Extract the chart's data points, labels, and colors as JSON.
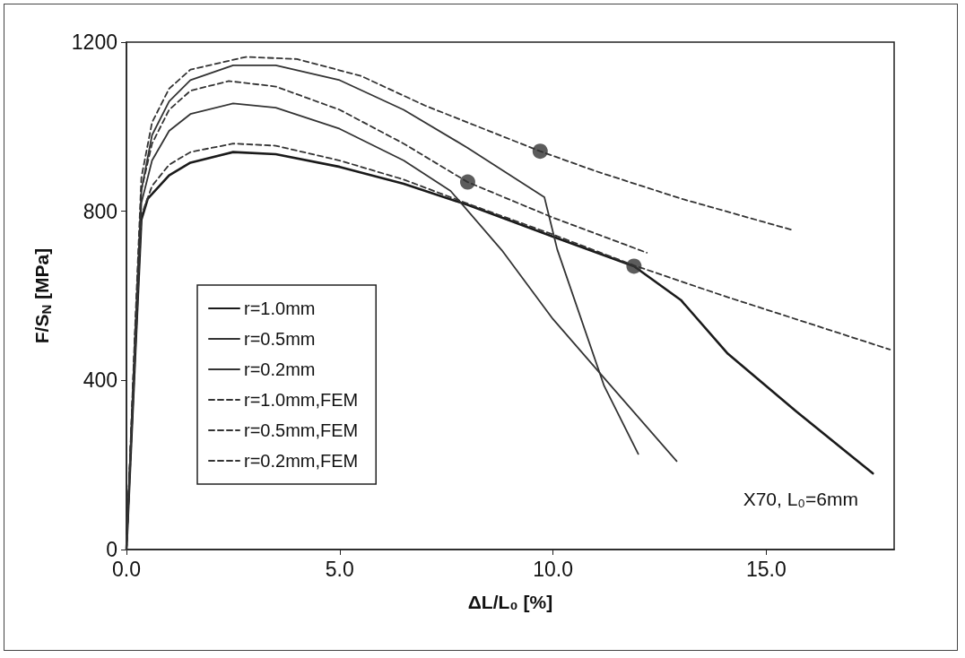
{
  "chart_data": {
    "type": "line",
    "xlabel": "ΔL/L₀ [%]",
    "ylabel": "F/S$_{N}$ [MPa]",
    "annotations": [
      "X70, L₀=6mm"
    ],
    "xlim": [
      0,
      18
    ],
    "xticks": [
      {
        "value": 0,
        "label": "0.0"
      },
      {
        "value": 5,
        "label": "5.0"
      },
      {
        "value": 10,
        "label": "10.0"
      },
      {
        "value": 15,
        "label": "15.0"
      }
    ],
    "ylim": [
      0,
      1200
    ],
    "yticks": [
      0,
      400,
      800,
      1200
    ],
    "grid": false,
    "legend": "left",
    "marker": "none",
    "series": [
      {
        "name": "r=1.0mm",
        "color": "#1a1a1a",
        "line_style": "solid",
        "x": [
          0,
          0.2,
          0.35,
          0.5,
          1,
          1.5,
          2.5,
          3.5,
          5,
          6.5,
          8,
          10,
          11.9,
          13,
          14.1,
          15.7,
          17.5
        ],
        "values": [
          0,
          450,
          780,
          830,
          885,
          915,
          940,
          935,
          905,
          865,
          815,
          740,
          670,
          590,
          463,
          327,
          180
        ]
      },
      {
        "name": "r=0.5mm",
        "color": "#333333",
        "line_style": "solid",
        "x": [
          0,
          0.2,
          0.35,
          0.6,
          1,
          1.5,
          2.5,
          3.5,
          5,
          6.5,
          8,
          9.8,
          10.1,
          11.2,
          12
        ],
        "values": [
          0,
          500,
          850,
          980,
          1060,
          1110,
          1145,
          1145,
          1110,
          1040,
          950,
          833,
          710,
          387,
          226
        ]
      },
      {
        "name": "r=0.2mm",
        "color": "#333333",
        "line_style": "solid",
        "x": [
          0,
          0.2,
          0.35,
          0.6,
          1,
          1.5,
          2.5,
          3.5,
          5,
          6.5,
          7.6,
          8.8,
          10,
          11.3,
          12.9
        ],
        "values": [
          0,
          480,
          820,
          920,
          990,
          1030,
          1055,
          1045,
          995,
          920,
          848,
          708,
          545,
          394,
          209
        ]
      },
      {
        "name": "r=1.0mm,FEM",
        "color": "#333333",
        "line_style": "dashed",
        "x": [
          0,
          0.2,
          0.35,
          0.6,
          1,
          1.5,
          2.5,
          3.5,
          5,
          6.5,
          8,
          10,
          11.9,
          14,
          16,
          17.9
        ],
        "values": [
          0,
          450,
          790,
          860,
          910,
          940,
          960,
          955,
          920,
          875,
          818,
          745,
          672,
          600,
          535,
          473
        ]
      },
      {
        "name": "r=0.5mm,FEM",
        "color": "#333333",
        "line_style": "dashed",
        "x": [
          0,
          0.2,
          0.35,
          0.6,
          1,
          1.5,
          2.8,
          4,
          5.5,
          7,
          8.5,
          9.7,
          11,
          13,
          15.6
        ],
        "values": [
          0,
          520,
          880,
          1010,
          1090,
          1135,
          1165,
          1160,
          1120,
          1050,
          990,
          942,
          895,
          830,
          756
        ]
      },
      {
        "name": "r=0.2mm,FEM",
        "color": "#333333",
        "line_style": "dashed",
        "x": [
          0,
          0.2,
          0.35,
          0.6,
          1,
          1.5,
          2.4,
          3.5,
          5,
          6.5,
          8,
          10,
          12.2
        ],
        "values": [
          0,
          500,
          850,
          960,
          1040,
          1085,
          1108,
          1095,
          1040,
          960,
          869,
          785,
          702
        ]
      },
      {
        "type": "scatter",
        "marker": "circle",
        "color": "#333333",
        "x": [
          11.9,
          9.7,
          8
        ],
        "values": [
          670,
          942,
          869
        ]
      }
    ]
  }
}
